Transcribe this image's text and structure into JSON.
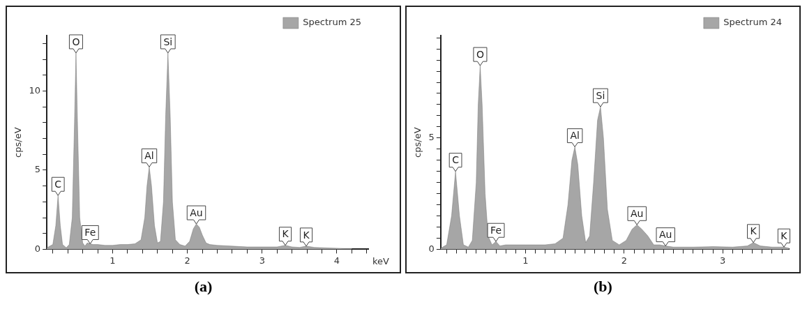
{
  "chart_data": [
    {
      "type": "area",
      "title": "(a)",
      "xlabel": "keV",
      "ylabel": "cps/eV",
      "legend": "top right",
      "series": [
        {
          "name": "Spectrum 25",
          "color": "#a6a6a6",
          "x": [
            0.12,
            0.2,
            0.24,
            0.27,
            0.3,
            0.33,
            0.38,
            0.42,
            0.46,
            0.49,
            0.51,
            0.53,
            0.56,
            0.6,
            0.63,
            0.66,
            0.7,
            0.74,
            0.8,
            0.9,
            1.0,
            1.1,
            1.2,
            1.3,
            1.38,
            1.43,
            1.46,
            1.49,
            1.52,
            1.56,
            1.6,
            1.64,
            1.68,
            1.71,
            1.74,
            1.77,
            1.8,
            1.84,
            1.9,
            1.97,
            2.03,
            2.08,
            2.12,
            2.16,
            2.2,
            2.25,
            2.3,
            2.4,
            2.6,
            2.8,
            3.0,
            3.2,
            3.31,
            3.4,
            3.5,
            3.59,
            3.7,
            3.9,
            4.1,
            4.2
          ],
          "values": [
            0.1,
            0.3,
            1.5,
            3.4,
            1.5,
            0.3,
            0.1,
            0.3,
            2.0,
            8.0,
            12.4,
            8.0,
            2.0,
            0.4,
            0.2,
            0.4,
            0.35,
            0.3,
            0.3,
            0.25,
            0.25,
            0.3,
            0.3,
            0.35,
            0.6,
            2.0,
            4.0,
            5.2,
            4.0,
            1.5,
            0.4,
            0.5,
            3.0,
            8.5,
            12.4,
            8.5,
            3.0,
            0.6,
            0.3,
            0.2,
            0.5,
            1.3,
            1.6,
            1.4,
            0.9,
            0.4,
            0.3,
            0.25,
            0.2,
            0.15,
            0.15,
            0.15,
            0.25,
            0.15,
            0.12,
            0.2,
            0.12,
            0.08,
            0.05,
            0.05
          ]
        }
      ],
      "xlim": [
        0.12,
        4.42
      ],
      "ylim": [
        0,
        13.5
      ],
      "xticks": [
        {
          "value": 0.2,
          "label": null
        },
        {
          "value": 0.4,
          "label": null
        },
        {
          "value": 0.6,
          "label": null
        },
        {
          "value": 0.8,
          "label": null
        },
        1,
        {
          "value": 1.2,
          "label": null
        },
        {
          "value": 1.4,
          "label": null
        },
        {
          "value": 1.6,
          "label": null
        },
        {
          "value": 1.8,
          "label": null
        },
        2,
        {
          "value": 2.2,
          "label": null
        },
        {
          "value": 2.4,
          "label": null
        },
        {
          "value": 2.6,
          "label": null
        },
        {
          "value": 2.8,
          "label": null
        },
        3,
        {
          "value": 3.2,
          "label": null
        },
        {
          "value": 3.4,
          "label": null
        },
        {
          "value": 3.6,
          "label": null
        },
        {
          "value": 3.8,
          "label": null
        },
        4,
        {
          "value": 4.2,
          "label": null
        },
        {
          "value": 4.4,
          "label": null
        }
      ],
      "yticks": [
        0,
        {
          "value": 1,
          "label": null
        },
        {
          "value": 2,
          "label": null
        },
        {
          "value": 3,
          "label": null
        },
        {
          "value": 4,
          "label": null
        },
        5,
        {
          "value": 6,
          "label": null
        },
        {
          "value": 7,
          "label": null
        },
        {
          "value": 8,
          "label": null
        },
        {
          "value": 9,
          "label": null
        },
        10,
        {
          "value": 11,
          "label": null
        },
        {
          "value": 12,
          "label": null
        },
        {
          "value": 13,
          "label": null
        }
      ],
      "annotations": [
        {
          "text": "C",
          "x": 0.27,
          "y": 3.4
        },
        {
          "text": "O",
          "x": 0.51,
          "y": 12.4
        },
        {
          "text": "Fe",
          "x": 0.7,
          "y": 0.35
        },
        {
          "text": "Al",
          "x": 1.49,
          "y": 5.2
        },
        {
          "text": "Si",
          "x": 1.74,
          "y": 12.4
        },
        {
          "text": "Au",
          "x": 2.12,
          "y": 1.6
        },
        {
          "text": "K",
          "x": 3.31,
          "y": 0.25
        },
        {
          "text": "K",
          "x": 3.59,
          "y": 0.2
        }
      ]
    },
    {
      "type": "area",
      "title": "(b)",
      "ylabel": "cps/eV",
      "legend": "top right",
      "series": [
        {
          "name": "Spectrum 24",
          "color": "#a6a6a6",
          "x": [
            0.14,
            0.2,
            0.25,
            0.29,
            0.33,
            0.37,
            0.42,
            0.46,
            0.5,
            0.52,
            0.54,
            0.56,
            0.59,
            0.62,
            0.66,
            0.7,
            0.74,
            0.8,
            0.9,
            1.0,
            1.1,
            1.2,
            1.3,
            1.38,
            1.43,
            1.47,
            1.5,
            1.53,
            1.57,
            1.61,
            1.65,
            1.69,
            1.73,
            1.76,
            1.79,
            1.83,
            1.88,
            1.95,
            2.02,
            2.08,
            2.13,
            2.18,
            2.24,
            2.3,
            2.36,
            2.42,
            2.5,
            2.7,
            2.9,
            3.1,
            3.25,
            3.31,
            3.38,
            3.5,
            3.62,
            3.67
          ],
          "values": [
            0.05,
            0.2,
            1.5,
            3.5,
            1.5,
            0.2,
            0.1,
            0.4,
            3.0,
            6.5,
            8.25,
            6.5,
            2.5,
            0.6,
            0.2,
            0.35,
            0.15,
            0.2,
            0.2,
            0.2,
            0.2,
            0.2,
            0.25,
            0.5,
            2.0,
            4.0,
            4.6,
            3.8,
            1.5,
            0.3,
            0.6,
            3.0,
            5.8,
            6.4,
            5.0,
            1.8,
            0.4,
            0.2,
            0.4,
            0.9,
            1.1,
            0.9,
            0.6,
            0.2,
            0.2,
            0.15,
            0.1,
            0.1,
            0.12,
            0.1,
            0.15,
            0.3,
            0.15,
            0.1,
            0.1,
            0.05
          ]
        }
      ],
      "xlim": [
        0.14,
        3.67
      ],
      "ylim": [
        0,
        9.6
      ],
      "xticks": [
        {
          "value": 0.2,
          "label": null
        },
        {
          "value": 0.3,
          "label": null
        },
        {
          "value": 0.4,
          "label": null
        },
        {
          "value": 0.5,
          "label": null
        },
        {
          "value": 0.6,
          "label": null
        },
        {
          "value": 0.7,
          "label": null
        },
        {
          "value": 0.8,
          "label": null
        },
        {
          "value": 0.9,
          "label": null
        },
        1,
        {
          "value": 1.1,
          "label": null
        },
        {
          "value": 1.2,
          "label": null
        },
        {
          "value": 1.3,
          "label": null
        },
        {
          "value": 1.4,
          "label": null
        },
        {
          "value": 1.5,
          "label": null
        },
        {
          "value": 1.6,
          "label": null
        },
        {
          "value": 1.7,
          "label": null
        },
        {
          "value": 1.8,
          "label": null
        },
        {
          "value": 1.9,
          "label": null
        },
        2,
        {
          "value": 2.1,
          "label": null
        },
        {
          "value": 2.2,
          "label": null
        },
        {
          "value": 2.3,
          "label": null
        },
        {
          "value": 2.4,
          "label": null
        },
        {
          "value": 2.5,
          "label": null
        },
        {
          "value": 2.6,
          "label": null
        },
        {
          "value": 2.7,
          "label": null
        },
        {
          "value": 2.8,
          "label": null
        },
        {
          "value": 2.9,
          "label": null
        },
        3,
        {
          "value": 3.1,
          "label": null
        },
        {
          "value": 3.2,
          "label": null
        },
        {
          "value": 3.3,
          "label": null
        },
        {
          "value": 3.4,
          "label": null
        },
        {
          "value": 3.5,
          "label": null
        },
        {
          "value": 3.6,
          "label": null
        }
      ],
      "yticks": [
        0,
        {
          "value": 0.5,
          "label": null
        },
        {
          "value": 1,
          "label": null
        },
        {
          "value": 1.5,
          "label": null
        },
        {
          "value": 2,
          "label": null
        },
        {
          "value": 2.5,
          "label": null
        },
        {
          "value": 3,
          "label": null
        },
        {
          "value": 3.5,
          "label": null
        },
        {
          "value": 4,
          "label": null
        },
        {
          "value": 4.5,
          "label": null
        },
        5,
        {
          "value": 5.5,
          "label": null
        },
        {
          "value": 6,
          "label": null
        },
        {
          "value": 6.5,
          "label": null
        },
        {
          "value": 7,
          "label": null
        },
        {
          "value": 7.5,
          "label": null
        },
        {
          "value": 8,
          "label": null
        },
        {
          "value": 8.5,
          "label": null
        },
        {
          "value": 9,
          "label": null
        },
        {
          "value": 9.5,
          "label": null
        }
      ],
      "annotations": [
        {
          "text": "C",
          "x": 0.29,
          "y": 3.5
        },
        {
          "text": "O",
          "x": 0.54,
          "y": 8.25
        },
        {
          "text": "Fe",
          "x": 0.7,
          "y": 0.35
        },
        {
          "text": "Al",
          "x": 1.5,
          "y": 4.6
        },
        {
          "text": "Si",
          "x": 1.76,
          "y": 6.4
        },
        {
          "text": "Au",
          "x": 2.13,
          "y": 1.1
        },
        {
          "text": "Au",
          "x": 2.42,
          "y": 0.15
        },
        {
          "text": "K",
          "x": 3.31,
          "y": 0.3
        },
        {
          "text": "K",
          "x": 3.62,
          "y": 0.1
        }
      ]
    }
  ]
}
